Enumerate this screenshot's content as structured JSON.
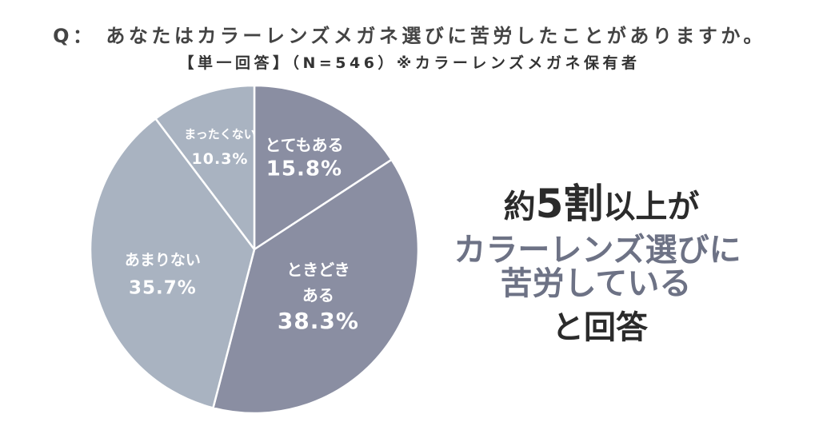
{
  "chart_data": {
    "type": "pie",
    "title": "Q： あなたはカラーレンズメガネ選びに苦労したことがありますか。",
    "subtitle": "【単一回答】（N=546）※カラーレンズメガネ保有者",
    "slices": [
      {
        "label_lines": [
          "とてもある"
        ],
        "value": 15.8,
        "value_label": "15.8%",
        "color": "#8a8ea2"
      },
      {
        "label_lines": [
          "ときどき",
          "ある"
        ],
        "value": 38.3,
        "value_label": "38.3%",
        "color": "#8a8ea2"
      },
      {
        "label_lines": [
          "あまりない"
        ],
        "value": 35.7,
        "value_label": "35.7%",
        "color": "#a9b3c1"
      },
      {
        "label_lines": [
          "まったくない"
        ],
        "value": 10.3,
        "value_label": "10.3%",
        "color": "#a9b3c1"
      }
    ]
  },
  "callout": {
    "line1": {
      "prefix": "約",
      "emphasis": "5割",
      "suffix": "以上が"
    },
    "line2": "カラーレンズ選びに",
    "line3": "苦労している",
    "line4": "と回答",
    "colors": {
      "dark": "#2b2b2b",
      "accent": "#6d7285"
    }
  }
}
